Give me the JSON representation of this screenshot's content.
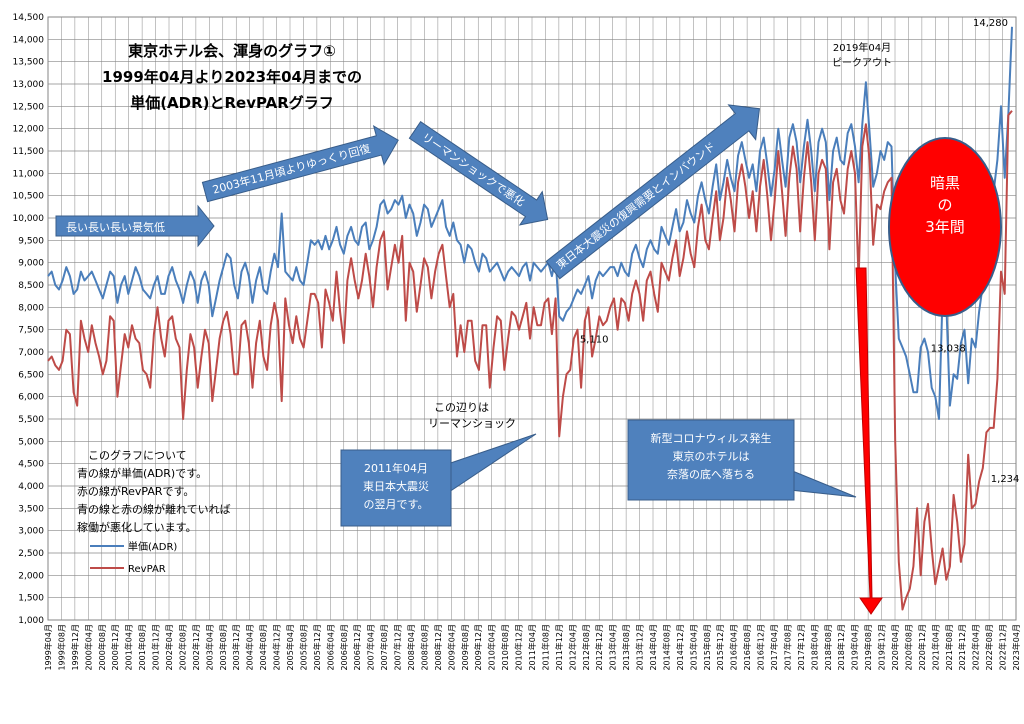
{
  "chart_data": {
    "type": "line",
    "title_lines": [
      "東京ホテル会、渾身のグラフ①",
      "1999年04月より2023年04月までの",
      "単価(ADR)とRevPARグラフ"
    ],
    "ylim": [
      1000,
      14500
    ],
    "yticks": [
      "1,000",
      "1,500",
      "2,000",
      "2,500",
      "3,000",
      "3,500",
      "4,000",
      "4,500",
      "5,000",
      "5,500",
      "6,000",
      "6,500",
      "7,000",
      "7,500",
      "8,000",
      "8,500",
      "9,000",
      "9,500",
      "10,000",
      "10,500",
      "11,000",
      "11,500",
      "12,000",
      "12,500",
      "13,000",
      "13,500",
      "14,000",
      "14,500"
    ],
    "x_start": "1999-04",
    "x_end": "2023-04",
    "xtick_step_months": 4,
    "grid": true,
    "series": [
      {
        "name": "単価(ADR)",
        "color": "#4a7ebb",
        "values": [
          8700,
          8800,
          8500,
          8400,
          8600,
          8900,
          8700,
          8300,
          8400,
          8800,
          8600,
          8700,
          8800,
          8600,
          8400,
          8200,
          8500,
          8800,
          8700,
          8100,
          8500,
          8700,
          8300,
          8600,
          8900,
          8700,
          8400,
          8300,
          8200,
          8500,
          8700,
          8300,
          8300,
          8700,
          8900,
          8600,
          8400,
          8100,
          8500,
          8800,
          8600,
          8100,
          8600,
          8800,
          8500,
          7800,
          8200,
          8600,
          8900,
          9200,
          9100,
          8500,
          8200,
          8800,
          9000,
          8700,
          8100,
          8600,
          8900,
          8400,
          8300,
          8800,
          9200,
          8900,
          10100,
          8800,
          8700,
          8600,
          8900,
          8600,
          8500,
          9000,
          9500,
          9400,
          9500,
          9300,
          9600,
          9300,
          9500,
          9800,
          9400,
          9200,
          9600,
          9800,
          9500,
          9400,
          9800,
          9900,
          9300,
          9500,
          9800,
          10300,
          10400,
          10100,
          10200,
          10400,
          10300,
          10500,
          10000,
          10300,
          10100,
          9600,
          9900,
          10300,
          10200,
          9800,
          10000,
          10200,
          10400,
          9800,
          9600,
          9900,
          9500,
          9400,
          9000,
          9400,
          9300,
          9000,
          8800,
          9200,
          9100,
          8800,
          8900,
          9000,
          8800,
          8600,
          8800,
          8900,
          8800,
          8700,
          8900,
          9000,
          8600,
          9000,
          8900,
          8800,
          8900,
          9000,
          8700,
          9100,
          7800,
          7700,
          7900,
          8000,
          8200,
          8400,
          8300,
          8500,
          8700,
          8200,
          8600,
          8800,
          8700,
          8800,
          8900,
          8900,
          8700,
          9000,
          8800,
          8700,
          9200,
          9400,
          9100,
          8900,
          9300,
          9500,
          9300,
          9200,
          9800,
          9600,
          9400,
          9800,
          10200,
          9700,
          9900,
          10400,
          10100,
          9900,
          10500,
          10800,
          10400,
          10100,
          10700,
          11200,
          10400,
          10800,
          11300,
          10900,
          10600,
          11400,
          11700,
          11300,
          10900,
          11200,
          10600,
          11500,
          11800,
          11200,
          10500,
          11100,
          12000,
          11300,
          10700,
          11800,
          12100,
          11700,
          10800,
          11600,
          12200,
          11500,
          10600,
          11700,
          12000,
          11700,
          10400,
          11500,
          11800,
          11300,
          11200,
          11900,
          12100,
          11600,
          10800,
          12100,
          13038,
          11900,
          10700,
          11000,
          11500,
          11300,
          11700,
          11600,
          8900,
          7300,
          7100,
          6900,
          6500,
          6100,
          6100,
          7100,
          7300,
          7000,
          6200,
          6000,
          5500,
          8300,
          8100,
          5800,
          6500,
          6400,
          7200,
          7500,
          6300,
          7300,
          7100,
          7900,
          8500,
          9500,
          9500,
          10600,
          11300,
          12500,
          10900,
          12300,
          14280
        ],
        "endpoint_labels": [
          {
            "index": 239,
            "text": "13,038"
          },
          {
            "index": 288,
            "text": "14,280"
          }
        ]
      },
      {
        "name": "RevPAR",
        "color": "#be4b48",
        "values": [
          6800,
          6900,
          6700,
          6600,
          6800,
          7500,
          7400,
          6100,
          5800,
          7700,
          7300,
          7000,
          7600,
          7200,
          6900,
          6500,
          6800,
          7800,
          7700,
          6000,
          6700,
          7400,
          7100,
          7600,
          7300,
          7200,
          6600,
          6500,
          6200,
          7400,
          8000,
          7300,
          6900,
          7700,
          7800,
          7300,
          7100,
          5500,
          6600,
          7400,
          7100,
          6200,
          6900,
          7500,
          7200,
          5900,
          6600,
          7300,
          7700,
          7900,
          7400,
          6500,
          6500,
          7600,
          7700,
          7200,
          6200,
          7200,
          7700,
          6900,
          6600,
          7600,
          8100,
          7700,
          5900,
          8200,
          7600,
          7200,
          7800,
          7300,
          7100,
          7700,
          8300,
          8300,
          8100,
          7100,
          8400,
          8100,
          7700,
          8800,
          7900,
          7200,
          8600,
          9100,
          8600,
          8200,
          8600,
          9200,
          8700,
          8000,
          8900,
          9500,
          9700,
          8400,
          8900,
          9400,
          9000,
          9600,
          7700,
          9000,
          8800,
          7900,
          8500,
          9100,
          8900,
          8200,
          8800,
          9200,
          9400,
          8700,
          8000,
          8300,
          6900,
          7600,
          7000,
          7700,
          7700,
          6800,
          6600,
          7600,
          7600,
          6200,
          7100,
          7800,
          7700,
          6600,
          7300,
          7900,
          7800,
          7500,
          7800,
          8100,
          7300,
          8000,
          7600,
          7600,
          8100,
          8200,
          7400,
          8200,
          5110,
          6000,
          6500,
          6600,
          7300,
          7500,
          6200,
          7700,
          8000,
          6900,
          7300,
          7800,
          7600,
          7700,
          8000,
          8200,
          7500,
          8200,
          8100,
          7700,
          8300,
          8600,
          8300,
          7700,
          8600,
          8800,
          8300,
          7900,
          9000,
          8800,
          8600,
          9100,
          9500,
          8700,
          9100,
          9700,
          9200,
          8900,
          9800,
          10300,
          9500,
          9300,
          10000,
          10600,
          9500,
          10000,
          10900,
          10400,
          9700,
          10800,
          11200,
          10700,
          10000,
          10600,
          9700,
          10700,
          11300,
          10500,
          9500,
          10400,
          11500,
          10600,
          9600,
          10900,
          11600,
          11100,
          9700,
          10900,
          11700,
          10800,
          9500,
          11000,
          11300,
          11100,
          9300,
          10800,
          11100,
          10400,
          10100,
          11100,
          11500,
          11000,
          8600,
          11600,
          12100,
          11300,
          9400,
          10300,
          10200,
          10600,
          10800,
          10900,
          5000,
          2300,
          1234,
          1500,
          1700,
          2200,
          3500,
          2000,
          3200,
          3600,
          2600,
          1800,
          2200,
          2600,
          1900,
          2200,
          3800,
          3200,
          2300,
          2700,
          4700,
          3500,
          3600,
          4100,
          4400,
          5200,
          5300,
          5300,
          6400,
          8800,
          8300,
          12300,
          12400
        ],
        "endpoint_labels": [
          {
            "index": 144,
            "text": "5,110"
          },
          {
            "index": 256,
            "text": "1,234"
          }
        ]
      }
    ],
    "legend": {
      "placement": "left",
      "items": [
        "単価(ADR)",
        "RevPAR"
      ]
    },
    "annotations": {
      "arrow1": "長い長い長い景気低",
      "arrow2": "2003年11月頃よりゆっくり回復",
      "arrow3": "リーマンショックで悪化",
      "arrow4": "東日本大震災の復興需要とインバウンド",
      "lehman_note": [
        "この辺りは",
        "リーマンショック"
      ],
      "quake_box": [
        "2011年04月",
        "東日本大震災",
        "の翌月です。"
      ],
      "covid_box": [
        "新型コロナウィルス発生",
        "東京のホテルは",
        "奈落の底へ落ちる"
      ],
      "peak_note": [
        "2019年04月",
        "ピークアウト"
      ],
      "dark_oval": [
        "暗黒",
        "の",
        "3年間"
      ],
      "explain": [
        "このグラフについて",
        "青の線が単価(ADR)です。",
        "赤の線がRevPARです。",
        "青の線と赤の線が離れていれば",
        "稼働が悪化しています。"
      ]
    },
    "colors": {
      "arrow_fill": "#4f81bd",
      "arrow_stroke": "#385d8a",
      "box_fill": "#4f81bd",
      "oval_fill": "#ff0000",
      "red_arrow": "#ff0000"
    }
  }
}
